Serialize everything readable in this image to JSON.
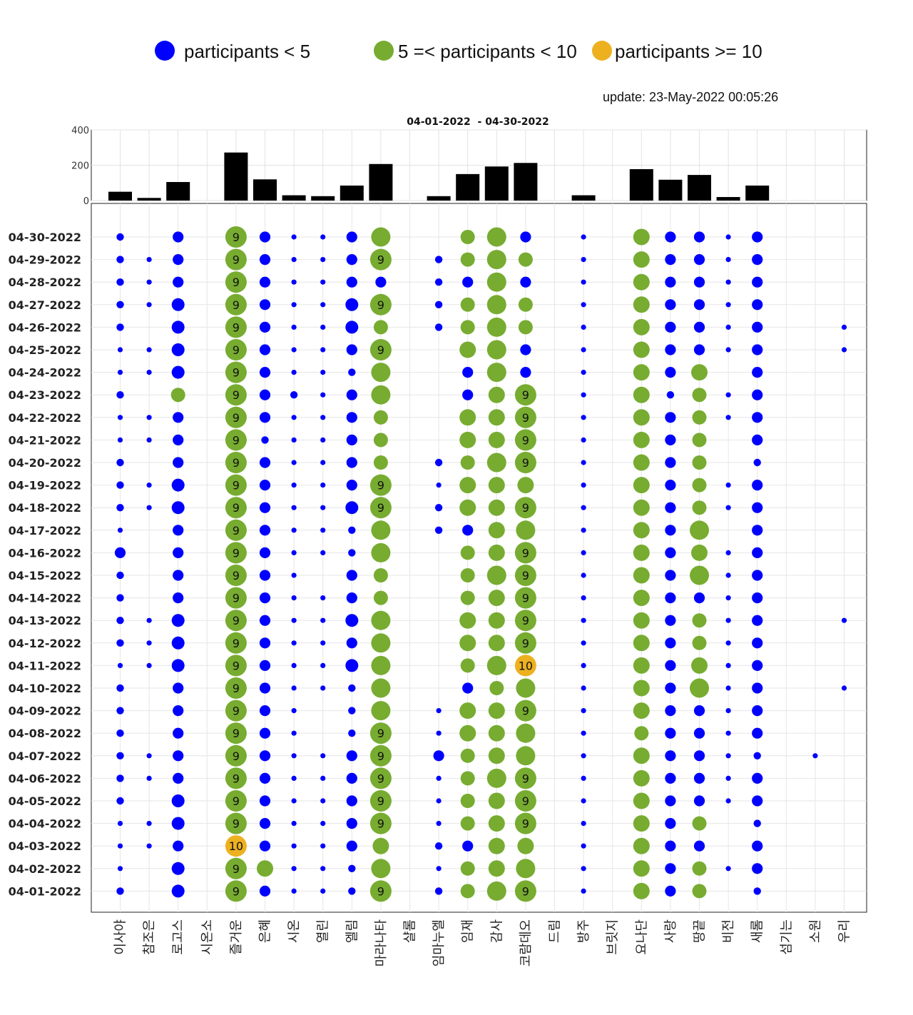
{
  "legend": {
    "items": [
      {
        "label": "participants < 5",
        "color": "#0000ff"
      },
      {
        "label": "5 =< participants < 10",
        "color": "#77ac30"
      },
      {
        "label": "participants >= 10",
        "color": "#edb120"
      }
    ]
  },
  "update_label": "update: 23-May-2022 00:05:26",
  "chart_data": [
    {
      "type": "bar",
      "title": "04-01-2022  - 04-30-2022",
      "ylim": [
        0,
        400
      ],
      "yticks": [
        0,
        200,
        400
      ],
      "grid": true,
      "categories": [
        "이사야",
        "참조은",
        "로고스",
        "시온소",
        "즐거운",
        "은혜",
        "시온",
        "열린",
        "엘림",
        "마라나타",
        "샬롬",
        "임마누엘",
        "임재",
        "감사",
        "코람데오",
        "드림",
        "방주",
        "브릿지",
        "요나단",
        "사랑",
        "땅끝",
        "비전",
        "새롬",
        "섬기는",
        "소원",
        "우리"
      ],
      "values": [
        50,
        15,
        105,
        0,
        272,
        120,
        30,
        25,
        85,
        207,
        0,
        25,
        150,
        193,
        213,
        0,
        30,
        0,
        178,
        118,
        145,
        20,
        85,
        0,
        0,
        0
      ]
    },
    {
      "type": "scatter",
      "title": "",
      "xlabel": "",
      "ylabel": "",
      "grid": true,
      "categories": [
        "이사야",
        "참조은",
        "로고스",
        "시온소",
        "즐거운",
        "은혜",
        "시온",
        "열린",
        "엘림",
        "마라나타",
        "샬롬",
        "임마누엘",
        "임재",
        "감사",
        "코람데오",
        "드림",
        "방주",
        "브릿지",
        "요나단",
        "사랑",
        "땅끝",
        "비전",
        "새롬",
        "섬기는",
        "소원",
        "우리"
      ],
      "dates": [
        "04-30-2022",
        "04-29-2022",
        "04-28-2022",
        "04-27-2022",
        "04-26-2022",
        "04-25-2022",
        "04-24-2022",
        "04-23-2022",
        "04-22-2022",
        "04-21-2022",
        "04-20-2022",
        "04-19-2022",
        "04-18-2022",
        "04-17-2022",
        "04-16-2022",
        "04-15-2022",
        "04-14-2022",
        "04-13-2022",
        "04-12-2022",
        "04-11-2022",
        "04-10-2022",
        "04-09-2022",
        "04-08-2022",
        "04-07-2022",
        "04-06-2022",
        "04-05-2022",
        "04-04-2022",
        "04-03-2022",
        "04-02-2022",
        "04-01-2022"
      ],
      "participants": [
        [
          2,
          0,
          3,
          0,
          9,
          3,
          1,
          1,
          3,
          8,
          0,
          0,
          6,
          8,
          3,
          0,
          1,
          0,
          7,
          3,
          3,
          1,
          3,
          0,
          0,
          0
        ],
        [
          2,
          1,
          3,
          0,
          9,
          3,
          1,
          1,
          3,
          9,
          0,
          2,
          6,
          8,
          6,
          0,
          1,
          0,
          7,
          3,
          3,
          1,
          3,
          0,
          0,
          0
        ],
        [
          2,
          1,
          3,
          0,
          9,
          3,
          1,
          1,
          3,
          3,
          0,
          2,
          3,
          8,
          3,
          0,
          1,
          0,
          7,
          3,
          3,
          1,
          3,
          0,
          0,
          0
        ],
        [
          2,
          1,
          4,
          0,
          9,
          3,
          1,
          1,
          4,
          9,
          0,
          2,
          6,
          8,
          6,
          0,
          1,
          0,
          7,
          3,
          3,
          1,
          3,
          0,
          0,
          0
        ],
        [
          2,
          0,
          4,
          0,
          9,
          3,
          1,
          1,
          4,
          6,
          0,
          2,
          6,
          8,
          6,
          0,
          1,
          0,
          7,
          3,
          3,
          1,
          3,
          0,
          0,
          1
        ],
        [
          1,
          1,
          4,
          0,
          9,
          3,
          1,
          1,
          3,
          9,
          0,
          0,
          7,
          8,
          3,
          0,
          1,
          0,
          7,
          3,
          3,
          1,
          3,
          0,
          0,
          1
        ],
        [
          1,
          1,
          4,
          0,
          9,
          3,
          1,
          1,
          2,
          8,
          0,
          0,
          3,
          8,
          3,
          0,
          1,
          0,
          7,
          3,
          7,
          0,
          3,
          0,
          0,
          0
        ],
        [
          2,
          0,
          6,
          0,
          9,
          3,
          2,
          1,
          3,
          8,
          0,
          0,
          3,
          7,
          9,
          0,
          1,
          0,
          7,
          2,
          6,
          1,
          3,
          0,
          0,
          0
        ],
        [
          1,
          1,
          3,
          0,
          9,
          3,
          1,
          1,
          3,
          6,
          0,
          0,
          7,
          7,
          9,
          0,
          1,
          0,
          7,
          3,
          6,
          1,
          3,
          0,
          0,
          0
        ],
        [
          1,
          1,
          3,
          0,
          9,
          2,
          1,
          1,
          3,
          6,
          0,
          0,
          7,
          7,
          9,
          0,
          1,
          0,
          7,
          3,
          6,
          0,
          3,
          0,
          0,
          0
        ],
        [
          2,
          0,
          3,
          0,
          9,
          3,
          1,
          1,
          3,
          6,
          0,
          2,
          6,
          8,
          9,
          0,
          1,
          0,
          7,
          3,
          6,
          0,
          2,
          0,
          0,
          0
        ],
        [
          2,
          1,
          4,
          0,
          9,
          3,
          1,
          1,
          3,
          9,
          0,
          1,
          7,
          7,
          7,
          0,
          1,
          0,
          7,
          3,
          6,
          1,
          3,
          0,
          0,
          0
        ],
        [
          2,
          1,
          4,
          0,
          9,
          3,
          1,
          1,
          4,
          9,
          0,
          2,
          7,
          7,
          9,
          0,
          1,
          0,
          7,
          3,
          6,
          1,
          3,
          0,
          0,
          0
        ],
        [
          1,
          0,
          3,
          0,
          9,
          3,
          1,
          1,
          2,
          8,
          0,
          2,
          3,
          7,
          8,
          0,
          1,
          0,
          7,
          3,
          8,
          0,
          3,
          0,
          0,
          0
        ],
        [
          3,
          0,
          3,
          0,
          9,
          3,
          1,
          1,
          2,
          8,
          0,
          0,
          6,
          7,
          9,
          0,
          1,
          0,
          7,
          3,
          7,
          1,
          3,
          0,
          0,
          0
        ],
        [
          2,
          0,
          3,
          0,
          9,
          3,
          1,
          0,
          3,
          6,
          0,
          0,
          6,
          8,
          9,
          0,
          1,
          0,
          7,
          3,
          8,
          1,
          3,
          0,
          0,
          0
        ],
        [
          2,
          0,
          3,
          0,
          9,
          3,
          1,
          1,
          3,
          6,
          0,
          0,
          6,
          7,
          9,
          0,
          1,
          0,
          7,
          3,
          3,
          1,
          3,
          0,
          0,
          0
        ],
        [
          2,
          1,
          4,
          0,
          9,
          3,
          1,
          1,
          4,
          8,
          0,
          0,
          7,
          7,
          9,
          0,
          1,
          0,
          7,
          3,
          6,
          1,
          3,
          0,
          0,
          1
        ],
        [
          2,
          1,
          4,
          0,
          9,
          3,
          1,
          1,
          3,
          8,
          0,
          0,
          7,
          7,
          9,
          0,
          1,
          0,
          7,
          3,
          6,
          1,
          3,
          0,
          0,
          0
        ],
        [
          1,
          1,
          4,
          0,
          9,
          3,
          1,
          1,
          4,
          8,
          0,
          0,
          6,
          8,
          10,
          0,
          1,
          0,
          7,
          3,
          7,
          1,
          3,
          0,
          0,
          0
        ],
        [
          2,
          0,
          3,
          0,
          9,
          3,
          1,
          1,
          2,
          8,
          0,
          0,
          3,
          6,
          8,
          0,
          1,
          0,
          7,
          3,
          8,
          1,
          3,
          0,
          0,
          1
        ],
        [
          2,
          0,
          3,
          0,
          9,
          3,
          1,
          0,
          2,
          8,
          0,
          1,
          7,
          7,
          9,
          0,
          1,
          0,
          7,
          3,
          3,
          1,
          3,
          0,
          0,
          0
        ],
        [
          2,
          0,
          3,
          0,
          9,
          3,
          1,
          0,
          2,
          9,
          0,
          1,
          7,
          7,
          8,
          0,
          1,
          0,
          6,
          3,
          3,
          1,
          3,
          0,
          0,
          0
        ],
        [
          2,
          1,
          3,
          0,
          9,
          3,
          1,
          1,
          3,
          9,
          0,
          3,
          6,
          7,
          8,
          0,
          1,
          0,
          7,
          3,
          3,
          1,
          2,
          0,
          1,
          0
        ],
        [
          2,
          1,
          3,
          0,
          9,
          3,
          1,
          1,
          3,
          9,
          0,
          1,
          6,
          8,
          9,
          0,
          1,
          0,
          7,
          3,
          3,
          1,
          3,
          0,
          0,
          0
        ],
        [
          2,
          0,
          4,
          0,
          9,
          3,
          1,
          1,
          3,
          9,
          0,
          1,
          6,
          7,
          9,
          0,
          1,
          0,
          7,
          3,
          3,
          1,
          3,
          0,
          0,
          0
        ],
        [
          1,
          1,
          4,
          0,
          9,
          3,
          1,
          1,
          3,
          9,
          0,
          1,
          6,
          7,
          9,
          0,
          1,
          0,
          7,
          3,
          6,
          0,
          2,
          0,
          0,
          0
        ],
        [
          1,
          1,
          3,
          0,
          10,
          3,
          1,
          1,
          3,
          7,
          0,
          2,
          3,
          7,
          7,
          0,
          1,
          0,
          7,
          3,
          3,
          0,
          3,
          0,
          0,
          0
        ],
        [
          1,
          0,
          4,
          0,
          9,
          7,
          1,
          1,
          2,
          8,
          0,
          1,
          6,
          7,
          8,
          0,
          1,
          0,
          7,
          3,
          6,
          1,
          3,
          0,
          0,
          0
        ],
        [
          2,
          0,
          4,
          0,
          9,
          3,
          1,
          1,
          2,
          9,
          0,
          2,
          6,
          8,
          9,
          0,
          1,
          0,
          7,
          3,
          6,
          0,
          2,
          0,
          0,
          0
        ]
      ]
    }
  ]
}
